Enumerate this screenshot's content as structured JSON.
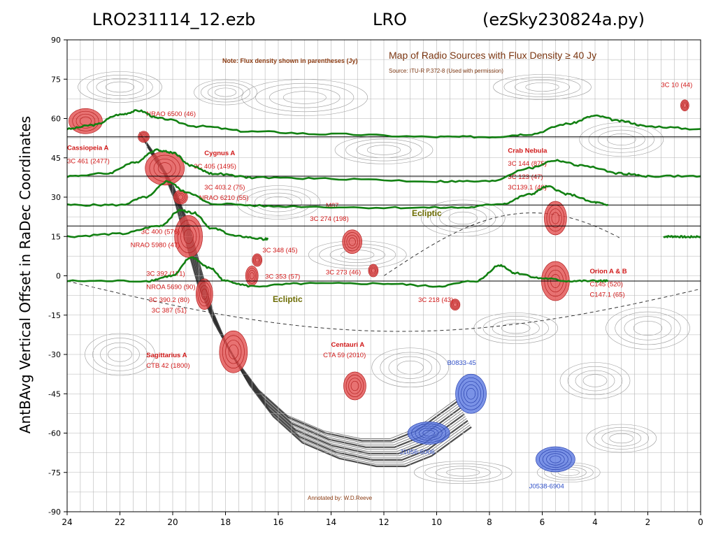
{
  "header": {
    "left": "LRO231114_12.ezb",
    "middle": "LRO",
    "right": "(ezSky230824a.py)"
  },
  "chart_data": {
    "type": "line",
    "ylabel": "AntBAvg Vertical Offset in RaDec Coordinates",
    "xlim": [
      24,
      0
    ],
    "ylim": [
      -90,
      90
    ],
    "x_ticks": [
      24,
      22,
      20,
      18,
      16,
      14,
      12,
      10,
      8,
      6,
      4,
      2,
      0
    ],
    "y_ticks": [
      90,
      75,
      60,
      45,
      30,
      15,
      0,
      -15,
      -30,
      -45,
      -60,
      -75,
      -90
    ],
    "scan_declinations": [
      53,
      38,
      27,
      19,
      -2
    ],
    "series_color": "#128012",
    "series": [
      {
        "dec": 53,
        "x": [
          24,
          23,
          22,
          21.3,
          20.5,
          19,
          17,
          14,
          10,
          8,
          6.5,
          5,
          4,
          3,
          2,
          0
        ],
        "y": [
          56,
          57.5,
          61.5,
          63,
          60,
          57,
          55,
          54,
          53,
          53,
          54,
          58,
          61,
          59,
          57,
          56
        ]
      },
      {
        "dec": 38,
        "x": [
          24,
          22.5,
          21.5,
          20.6,
          20,
          19.3,
          18.5,
          17,
          14,
          10,
          8,
          6.5,
          5.5,
          4.5,
          3,
          2,
          0
        ],
        "y": [
          38,
          39,
          43,
          48,
          47,
          42,
          39,
          37.5,
          37,
          36,
          36,
          41,
          44,
          42,
          39,
          38,
          38
        ]
      },
      {
        "dec": 27,
        "x": [
          24,
          22,
          21,
          20.2,
          19.5,
          18.5,
          16,
          12,
          9,
          7.5,
          6.5,
          5.8,
          5,
          4,
          3.5
        ],
        "y": [
          27,
          27,
          30,
          36,
          32,
          27.5,
          26.5,
          26,
          26,
          27.5,
          31,
          34,
          31,
          28,
          27
        ]
      },
      {
        "dec": 19,
        "x": [
          24,
          22,
          20.5,
          19.7,
          19.2,
          18.5,
          17.5,
          16.5,
          16.4
        ],
        "y": [
          15,
          16,
          19,
          25,
          24,
          18,
          15,
          14,
          14
        ]
      },
      {
        "dec": 19,
        "x": [
          1.4,
          1,
          0.5,
          0
        ],
        "y": [
          15,
          15,
          14.8,
          15
        ]
      },
      {
        "dec": -2,
        "x": [
          24,
          21,
          20,
          19.3,
          18.6,
          18,
          17,
          15,
          12,
          10,
          8.5,
          7.6,
          7,
          6,
          5,
          4,
          3.5
        ],
        "y": [
          -2,
          -2,
          0,
          7,
          3,
          -2,
          -4,
          -3,
          -3,
          -4,
          -2,
          4,
          1,
          -1,
          -2,
          -2,
          -2
        ]
      }
    ]
  },
  "map": {
    "note": "Note: Flux density shown in parentheses (Jy)",
    "title": "Map of Radio Sources with Flux Density ≥ 40 Jy",
    "source": "Source: ITU-R P.372-8 (Used with permission)",
    "annotated": "Annotated by: W.D.Reeve",
    "ecliptic": "Ecliptic",
    "labels": [
      {
        "text": "Cassiopeia A",
        "ra": 24.0,
        "dec": 48,
        "bold": true
      },
      {
        "text": "3C 461 (2477)",
        "ra": 24.0,
        "dec": 43
      },
      {
        "text": "NRAO 6500 (46)",
        "ra": 21.0,
        "dec": 61
      },
      {
        "text": "Cygnus A",
        "ra": 18.8,
        "dec": 46,
        "bold": true
      },
      {
        "text": "3C 405 (1495)",
        "ra": 19.2,
        "dec": 41
      },
      {
        "text": "3C 403.2 (75)",
        "ra": 18.8,
        "dec": 33
      },
      {
        "text": "NRAO 6210 (55)",
        "ra": 19.0,
        "dec": 29
      },
      {
        "text": "3C 400 (576)",
        "ra": 21.2,
        "dec": 16
      },
      {
        "text": "NRAO 5980 (47)",
        "ra": 21.6,
        "dec": 11
      },
      {
        "text": "3C 348 (45)",
        "ra": 16.6,
        "dec": 9
      },
      {
        "text": "3C 353 (57)",
        "ra": 16.5,
        "dec": -1
      },
      {
        "text": "3C 392 (171)",
        "ra": 21.0,
        "dec": 0
      },
      {
        "text": "NROA 5690 (90)",
        "ra": 21.0,
        "dec": -5
      },
      {
        "text": "3C 390.2 (80)",
        "ra": 20.9,
        "dec": -10
      },
      {
        "text": "3C 387 (51)",
        "ra": 20.8,
        "dec": -14
      },
      {
        "text": "M87",
        "ra": 14.2,
        "dec": 26
      },
      {
        "text": "3C 274 (198)",
        "ra": 14.8,
        "dec": 21
      },
      {
        "text": "3C 273 (46)",
        "ra": 14.2,
        "dec": 0.5
      },
      {
        "text": "3C 218 (43)",
        "ra": 10.7,
        "dec": -10
      },
      {
        "text": "Sagittarius A",
        "ra": 21.0,
        "dec": -31,
        "bold": true
      },
      {
        "text": "CTB 42 (1800)",
        "ra": 21.0,
        "dec": -35
      },
      {
        "text": "Centauri A",
        "ra": 14.0,
        "dec": -27,
        "bold": true
      },
      {
        "text": "CTA 59 (2010)",
        "ra": 14.3,
        "dec": -31
      },
      {
        "text": "Crab Nebula",
        "ra": 7.3,
        "dec": 47,
        "bold": true
      },
      {
        "text": "3C 144 (875)",
        "ra": 7.3,
        "dec": 42
      },
      {
        "text": "3C 123 (47)",
        "ra": 7.3,
        "dec": 37
      },
      {
        "text": "3C139.1 (40)",
        "ra": 7.3,
        "dec": 33
      },
      {
        "text": "Orion A & B",
        "ra": 4.2,
        "dec": 1,
        "bold": true
      },
      {
        "text": "C145 (520)",
        "ra": 4.2,
        "dec": -4
      },
      {
        "text": "C147.1 (65)",
        "ra": 4.2,
        "dec": -8
      },
      {
        "text": "3C 10 (44)",
        "ra": 1.5,
        "dec": 72
      }
    ],
    "blue_labels": [
      {
        "text": "B0833-45",
        "ra": 9.6,
        "dec": -34
      },
      {
        "text": "J1056-6006",
        "ra": 11.4,
        "dec": -68
      },
      {
        "text": "J0538-6904",
        "ra": 6.5,
        "dec": -81
      }
    ]
  }
}
